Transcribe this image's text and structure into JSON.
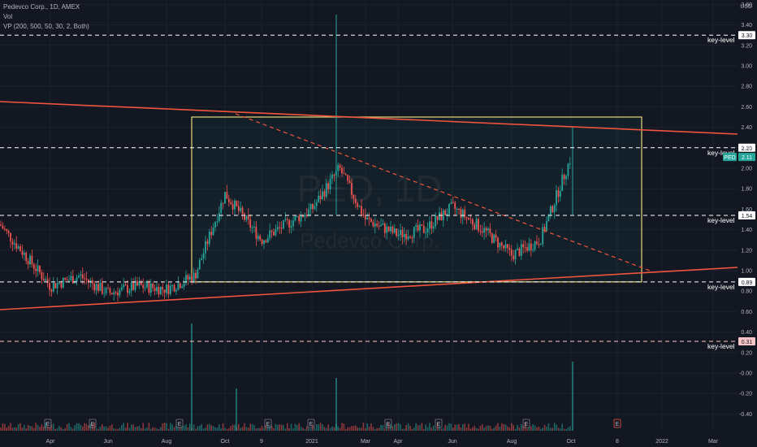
{
  "header": {
    "symbol_line": "Pedevco Corp., 1D, AMEX",
    "vol_label": "Vol",
    "vp_label": "VP (200, 500, 50, 30, 2, Both)"
  },
  "watermark": {
    "ticker": "PED, 1D",
    "name": "Pedevco Corp."
  },
  "y_axis": {
    "unit": "USD",
    "ticks": [
      "3.60",
      "3.40",
      "3.20",
      "3.00",
      "2.80",
      "2.60",
      "2.40",
      "2.20",
      "2.00",
      "1.80",
      "1.60",
      "1.40",
      "1.20",
      "1.00",
      "0.80",
      "0.60",
      "0.40",
      "0.20",
      "-0.00",
      "-0.20",
      "-0.40"
    ]
  },
  "x_axis": {
    "ticks": [
      "Apr",
      "Jun",
      "Aug",
      "Oct",
      "9",
      "2021",
      "Mar",
      "Apr",
      "Jun",
      "Aug",
      "Oct",
      "8",
      "2022",
      "Mar"
    ]
  },
  "key_levels": [
    {
      "label": "key-level",
      "value": "3.30",
      "color": "#ffffff",
      "tag_bg": "#ffffff",
      "tag_fg": "#131722"
    },
    {
      "label": "key-level",
      "value": "2.20",
      "color": "#ffffff",
      "tag_bg": "#ffffff",
      "tag_fg": "#131722"
    },
    {
      "label": "key-level",
      "value": "1.54",
      "color": "#ffffff",
      "tag_bg": "#ffffff",
      "tag_fg": "#131722"
    },
    {
      "label": "key-level",
      "value": "0.89",
      "color": "#ffffff",
      "tag_bg": "#ffffff",
      "tag_fg": "#131722"
    },
    {
      "label": "key-level",
      "value": "0.31",
      "color": "#f8c4c4",
      "tag_bg": "#f8c4c4",
      "tag_fg": "#131722"
    }
  ],
  "price_tag": {
    "ticker": "PED",
    "value": "2.11",
    "color": "#26a69a"
  },
  "earnings_label": "E",
  "colors": {
    "up": "#26a69a",
    "down": "#ef5350",
    "trend": "#f0543c",
    "box": "#e8d77a",
    "bg": "#131722",
    "grid": "#1e222d"
  },
  "chart_data": {
    "type": "candlestick",
    "title": "Pedevco Corp., 1D, AMEX",
    "ylabel": "USD",
    "ylim": [
      -0.5,
      3.7
    ],
    "horizontal_levels": [
      3.3,
      2.2,
      1.54,
      0.89,
      0.31
    ],
    "trendlines": [
      {
        "style": "solid",
        "from": [
          "2020-02",
          "2.65"
        ],
        "to": [
          "2022-03",
          "2.33"
        ]
      },
      {
        "style": "solid",
        "from": [
          "2020-02",
          "0.62"
        ],
        "to": [
          "2022-03",
          "1.02"
        ]
      },
      {
        "style": "dashed",
        "from": [
          "2020-10",
          "2.53"
        ],
        "to": [
          "2021-12",
          "1.00"
        ]
      }
    ],
    "range_box": {
      "x_from": "2020-09",
      "x_to": "2021-12",
      "y_from": 0.89,
      "y_to": 2.5
    },
    "price_path": [
      {
        "x": "2020-03",
        "close": 1.45
      },
      {
        "x": "2020-04",
        "close": 0.85
      },
      {
        "x": "2020-05",
        "close": 0.95
      },
      {
        "x": "2020-06",
        "close": 0.78
      },
      {
        "x": "2020-07",
        "close": 0.85
      },
      {
        "x": "2020-08",
        "close": 0.82
      },
      {
        "x": "2020-09",
        "close": 0.95
      },
      {
        "x": "2020-10",
        "close": 1.75
      },
      {
        "x": "2020-11",
        "close": 1.3
      },
      {
        "x": "2020-12",
        "close": 1.45
      },
      {
        "x": "2021-01",
        "close": 1.6
      },
      {
        "x": "2021-02",
        "close": 2.0
      },
      {
        "x": "2021-03",
        "close": 1.5
      },
      {
        "x": "2021-04",
        "close": 1.35
      },
      {
        "x": "2021-05",
        "close": 1.4
      },
      {
        "x": "2021-06",
        "close": 1.62
      },
      {
        "x": "2021-07",
        "close": 1.4
      },
      {
        "x": "2021-08",
        "close": 1.15
      },
      {
        "x": "2021-09",
        "close": 1.3
      },
      {
        "x": "2021-10",
        "close": 2.11
      }
    ],
    "spikes": [
      {
        "x": "2021-01",
        "high": 3.5
      },
      {
        "x": "2021-10",
        "high": 2.4
      }
    ]
  }
}
